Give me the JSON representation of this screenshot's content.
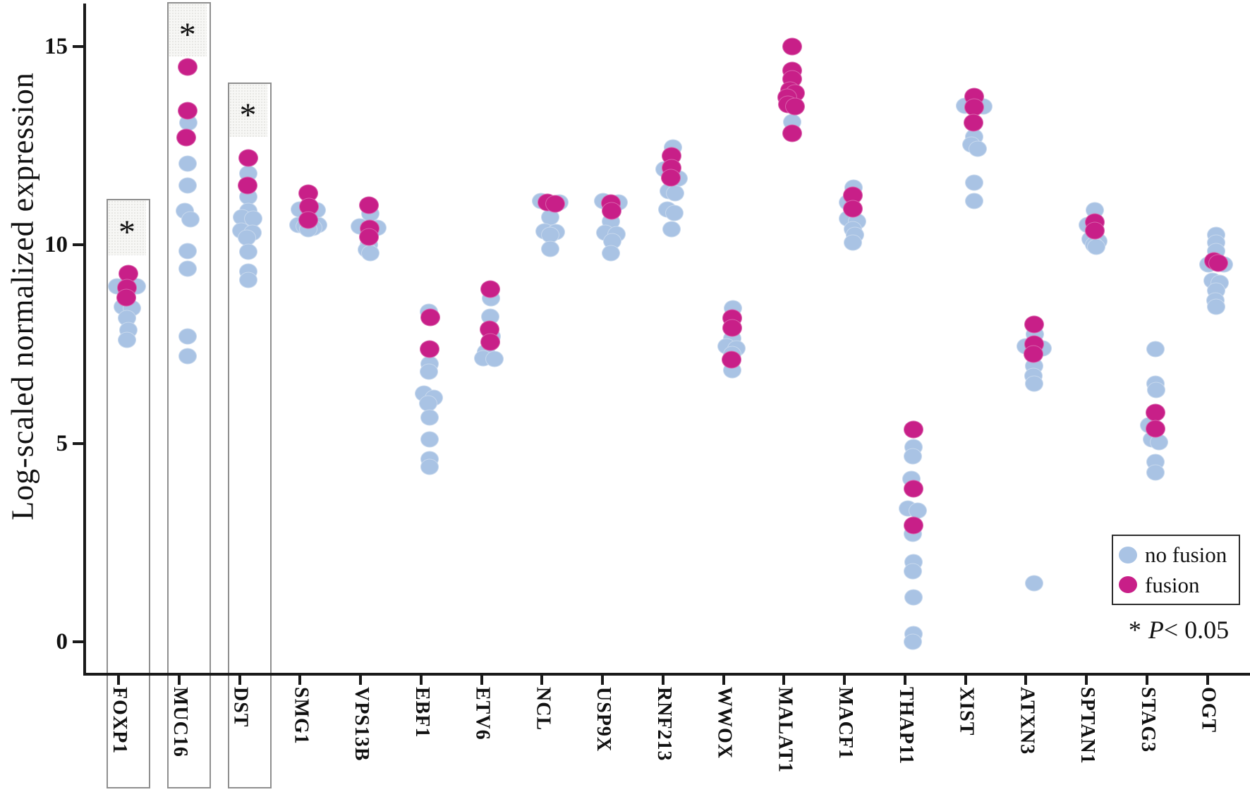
{
  "figure": {
    "ylabel": "Log-scaled normalized expression",
    "legend": {
      "no_fusion": "no fusion",
      "fusion": "fusion"
    },
    "note": {
      "star": "*",
      "p": "P",
      "rest": "< 0.05"
    },
    "box_asterisk": "*",
    "colors": {
      "no_fusion": "#a9c3e4",
      "fusion": "#c81f88",
      "axis": "#1a1a1a",
      "box_border": "#8f8f8f"
    }
  },
  "chart_data": {
    "type": "scatter",
    "title": "",
    "xlabel": "",
    "ylabel": "Log-scaled normalized expression",
    "ylim": [
      0,
      16.3
    ],
    "yticks": [
      0,
      5,
      10,
      15
    ],
    "grid": false,
    "legend_position": "bottom-right",
    "series_legend": [
      {
        "name": "no fusion",
        "color": "#a9c3e4"
      },
      {
        "name": "fusion",
        "color": "#c81f88"
      }
    ],
    "note": "* P< 0.05",
    "significant_genes": [
      "FOXP1",
      "MUC16",
      "DST"
    ],
    "point_format": "[value, jitter_px]",
    "genes": [
      {
        "name": "FOXP1",
        "significant": true,
        "no_fusion": [
          [
            8.95,
            -14
          ],
          [
            8.95,
            14
          ],
          [
            8.45,
            -6
          ],
          [
            8.4,
            7
          ],
          [
            8.15,
            0
          ],
          [
            7.85,
            2
          ],
          [
            7.6,
            0
          ]
        ],
        "fusion": [
          [
            9.27,
            2
          ],
          [
            8.93,
            0
          ],
          [
            8.67,
            -1
          ]
        ]
      },
      {
        "name": "MUC16",
        "significant": true,
        "no_fusion": [
          [
            13.08,
            1
          ],
          [
            12.05,
            0
          ],
          [
            11.5,
            0
          ],
          [
            10.85,
            -4
          ],
          [
            10.65,
            4
          ],
          [
            9.85,
            0
          ],
          [
            9.4,
            0
          ],
          [
            7.7,
            0
          ],
          [
            7.2,
            0
          ]
        ],
        "fusion": [
          [
            14.48,
            0
          ],
          [
            13.38,
            0
          ],
          [
            12.7,
            -2
          ]
        ]
      },
      {
        "name": "DST",
        "significant": true,
        "no_fusion": [
          [
            11.8,
            0
          ],
          [
            11.22,
            0
          ],
          [
            10.86,
            0
          ],
          [
            10.7,
            -9
          ],
          [
            10.67,
            7
          ],
          [
            10.36,
            -10
          ],
          [
            10.3,
            6
          ],
          [
            10.18,
            -2
          ],
          [
            9.83,
            0
          ],
          [
            9.33,
            0
          ],
          [
            9.12,
            0
          ]
        ],
        "fusion": [
          [
            12.2,
            0
          ],
          [
            11.49,
            -1
          ]
        ]
      },
      {
        "name": "SMG1",
        "significant": false,
        "no_fusion": [
          [
            10.9,
            -12
          ],
          [
            10.87,
            12
          ],
          [
            10.5,
            -14
          ],
          [
            10.5,
            14
          ],
          [
            10.46,
            -5
          ],
          [
            10.44,
            7
          ],
          [
            10.4,
            0
          ]
        ],
        "fusion": [
          [
            11.3,
            0
          ],
          [
            10.96,
            1
          ],
          [
            10.62,
            0
          ]
        ]
      },
      {
        "name": "VPS13B",
        "significant": false,
        "no_fusion": [
          [
            10.78,
            2
          ],
          [
            10.46,
            -13
          ],
          [
            10.44,
            12
          ],
          [
            10.0,
            0
          ],
          [
            9.88,
            -3
          ],
          [
            9.8,
            2
          ]
        ],
        "fusion": [
          [
            11.0,
            0
          ],
          [
            10.42,
            1
          ],
          [
            10.2,
            0
          ]
        ]
      },
      {
        "name": "EBF1",
        "significant": false,
        "no_fusion": [
          [
            8.32,
            -1
          ],
          [
            7.0,
            0
          ],
          [
            6.8,
            -1
          ],
          [
            6.25,
            -8
          ],
          [
            6.15,
            6
          ],
          [
            6.0,
            -2
          ],
          [
            5.65,
            0
          ],
          [
            5.1,
            0
          ],
          [
            4.6,
            0
          ],
          [
            4.4,
            0
          ]
        ],
        "fusion": [
          [
            8.17,
            1
          ],
          [
            7.37,
            0
          ]
        ]
      },
      {
        "name": "ETV6",
        "significant": false,
        "no_fusion": [
          [
            8.65,
            1
          ],
          [
            8.2,
            0
          ],
          [
            7.7,
            2
          ],
          [
            7.3,
            -6
          ],
          [
            7.15,
            -10
          ],
          [
            7.12,
            6
          ]
        ],
        "fusion": [
          [
            8.88,
            0
          ],
          [
            7.87,
            -1
          ],
          [
            7.55,
            0
          ]
        ]
      },
      {
        "name": "NCL",
        "significant": false,
        "no_fusion": [
          [
            11.1,
            -13
          ],
          [
            11.07,
            13
          ],
          [
            10.7,
            0
          ],
          [
            10.35,
            -8
          ],
          [
            10.32,
            8
          ],
          [
            10.25,
            0
          ],
          [
            9.9,
            0
          ]
        ],
        "fusion": [
          [
            11.08,
            -4
          ],
          [
            11.04,
            7
          ]
        ]
      },
      {
        "name": "USP9X",
        "significant": false,
        "no_fusion": [
          [
            11.1,
            -11
          ],
          [
            11.08,
            11
          ],
          [
            10.6,
            0
          ],
          [
            10.3,
            -8
          ],
          [
            10.27,
            8
          ],
          [
            10.1,
            2
          ],
          [
            9.8,
            0
          ]
        ],
        "fusion": [
          [
            11.05,
            0
          ],
          [
            10.85,
            1
          ]
        ]
      },
      {
        "name": "RNF213",
        "significant": false,
        "no_fusion": [
          [
            12.45,
            2
          ],
          [
            11.9,
            -10
          ],
          [
            11.68,
            10
          ],
          [
            11.35,
            -4
          ],
          [
            11.3,
            5
          ],
          [
            10.9,
            -6
          ],
          [
            10.8,
            4
          ],
          [
            10.4,
            0
          ]
        ],
        "fusion": [
          [
            12.25,
            0
          ],
          [
            11.95,
            0
          ],
          [
            11.7,
            -1
          ]
        ]
      },
      {
        "name": "WWOX",
        "significant": false,
        "no_fusion": [
          [
            8.4,
            1
          ],
          [
            7.65,
            0
          ],
          [
            7.45,
            -8
          ],
          [
            7.4,
            6
          ],
          [
            7.25,
            0
          ],
          [
            6.85,
            0
          ]
        ],
        "fusion": [
          [
            8.15,
            0
          ],
          [
            7.9,
            0
          ],
          [
            7.1,
            -1
          ]
        ]
      },
      {
        "name": "MALAT1",
        "significant": false,
        "no_fusion": [
          [
            13.1,
            0
          ]
        ],
        "fusion": [
          [
            15.0,
            0
          ],
          [
            14.4,
            0
          ],
          [
            14.18,
            0
          ],
          [
            13.9,
            -3
          ],
          [
            13.82,
            4
          ],
          [
            13.72,
            -7
          ],
          [
            13.55,
            -6
          ],
          [
            13.48,
            4
          ],
          [
            12.82,
            0
          ]
        ]
      },
      {
        "name": "MACF1",
        "significant": false,
        "no_fusion": [
          [
            11.45,
            1
          ],
          [
            11.07,
            -7
          ],
          [
            10.66,
            -7
          ],
          [
            10.6,
            6
          ],
          [
            10.4,
            0
          ],
          [
            10.25,
            3
          ],
          [
            10.05,
            0
          ]
        ],
        "fusion": [
          [
            11.25,
            0
          ],
          [
            10.92,
            0
          ]
        ]
      },
      {
        "name": "THAP11",
        "significant": false,
        "no_fusion": [
          [
            4.9,
            0
          ],
          [
            4.68,
            -1
          ],
          [
            4.1,
            -3
          ],
          [
            3.35,
            -8
          ],
          [
            3.3,
            6
          ],
          [
            2.72,
            -1
          ],
          [
            2.0,
            0
          ],
          [
            1.78,
            -1
          ],
          [
            1.12,
            0
          ],
          [
            0.2,
            0
          ],
          [
            0.0,
            -1
          ]
        ],
        "fusion": [
          [
            5.35,
            0
          ],
          [
            3.85,
            0
          ],
          [
            2.93,
            0
          ]
        ]
      },
      {
        "name": "XIST",
        "significant": false,
        "no_fusion": [
          [
            13.5,
            -13
          ],
          [
            13.48,
            13
          ],
          [
            12.73,
            0
          ],
          [
            12.52,
            -4
          ],
          [
            12.43,
            5
          ],
          [
            11.57,
            0
          ],
          [
            11.1,
            0
          ]
        ],
        "fusion": [
          [
            13.73,
            0
          ],
          [
            13.47,
            0
          ],
          [
            13.08,
            -1
          ]
        ]
      },
      {
        "name": "ATXN3",
        "significant": false,
        "no_fusion": [
          [
            7.75,
            1
          ],
          [
            7.45,
            -12
          ],
          [
            7.4,
            12
          ],
          [
            6.95,
            0
          ],
          [
            6.7,
            -1
          ],
          [
            6.5,
            0
          ],
          [
            1.48,
            0
          ]
        ],
        "fusion": [
          [
            8.0,
            0
          ],
          [
            7.5,
            0
          ],
          [
            7.25,
            -1
          ]
        ]
      },
      {
        "name": "SPTAN1",
        "significant": false,
        "no_fusion": [
          [
            10.87,
            0
          ],
          [
            10.5,
            -10
          ],
          [
            10.15,
            -6
          ],
          [
            10.1,
            5
          ],
          [
            10.0,
            -1
          ],
          [
            9.95,
            2
          ]
        ],
        "fusion": [
          [
            10.57,
            0
          ],
          [
            10.36,
            0
          ]
        ]
      },
      {
        "name": "STAG3",
        "significant": false,
        "no_fusion": [
          [
            7.37,
            0
          ],
          [
            6.51,
            0
          ],
          [
            6.34,
            1
          ],
          [
            5.45,
            -9
          ],
          [
            5.1,
            -5
          ],
          [
            5.03,
            5
          ],
          [
            4.53,
            0
          ],
          [
            4.26,
            0
          ]
        ],
        "fusion": [
          [
            5.77,
            0
          ],
          [
            5.36,
            0
          ]
        ]
      },
      {
        "name": "OGT",
        "significant": false,
        "no_fusion": [
          [
            10.25,
            0
          ],
          [
            10.05,
            0
          ],
          [
            9.85,
            0
          ],
          [
            9.5,
            -11
          ],
          [
            9.5,
            11
          ],
          [
            9.1,
            -5
          ],
          [
            9.05,
            5
          ],
          [
            8.85,
            0
          ],
          [
            8.6,
            -1
          ],
          [
            8.45,
            0
          ]
        ],
        "fusion": [
          [
            9.6,
            -3
          ],
          [
            9.55,
            3
          ]
        ]
      }
    ]
  }
}
